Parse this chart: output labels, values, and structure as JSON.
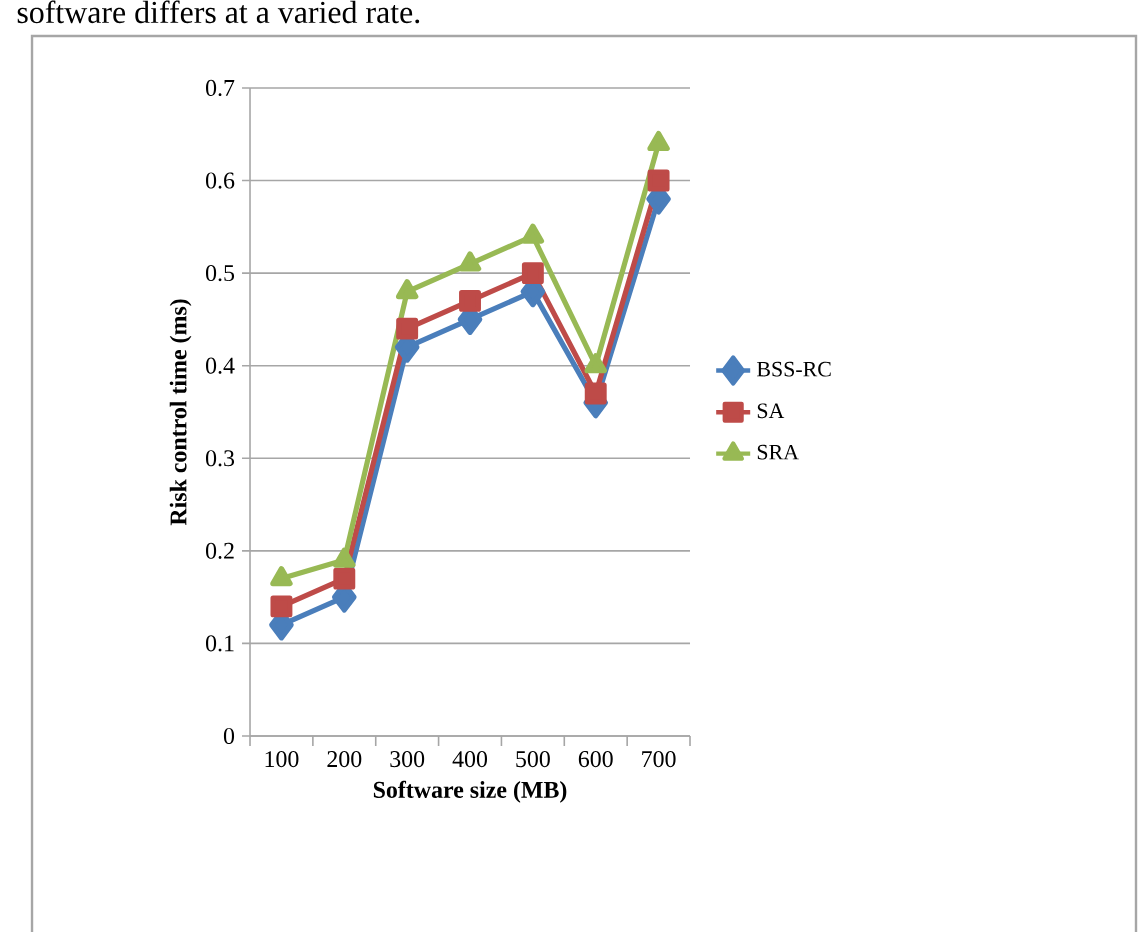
{
  "chart_data": {
    "type": "line",
    "annotations": [
      "software differs at a varied rate."
    ],
    "xlabel": "Software size (MB)",
    "ylabel": "Risk control time (ms)",
    "categories": [
      "100",
      "200",
      "300",
      "400",
      "500",
      "600",
      "700"
    ],
    "series": [
      {
        "name": "BSS-RC",
        "color": "#4a7ebb",
        "marker": "diamond",
        "values": [
          0.12,
          0.15,
          0.42,
          0.45,
          0.48,
          0.36,
          0.58
        ]
      },
      {
        "name": "SA",
        "color": "#be4b48",
        "marker": "square",
        "values": [
          0.14,
          0.17,
          0.44,
          0.47,
          0.5,
          0.37,
          0.6
        ]
      },
      {
        "name": "SRA",
        "color": "#98b954",
        "marker": "triangle",
        "values": [
          0.17,
          0.19,
          0.48,
          0.51,
          0.54,
          0.4,
          0.64
        ]
      }
    ],
    "ylim": [
      0,
      0.7
    ],
    "yticks": [
      0,
      0.1,
      0.2,
      0.3,
      0.4,
      0.5,
      0.6,
      0.7
    ],
    "grid": "y",
    "legend": "right",
    "line_style": "solid"
  }
}
